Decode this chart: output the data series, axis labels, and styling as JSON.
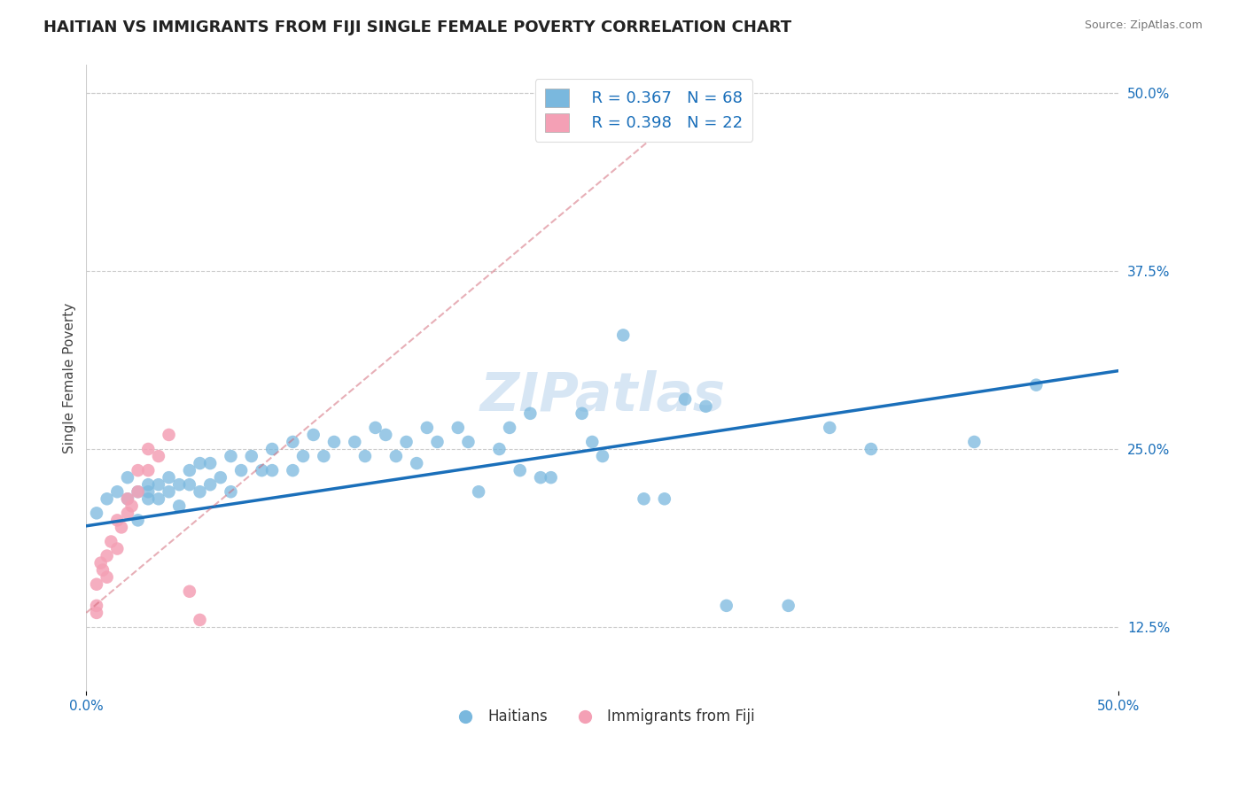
{
  "title": "HAITIAN VS IMMIGRANTS FROM FIJI SINGLE FEMALE POVERTY CORRELATION CHART",
  "source_text": "Source: ZipAtlas.com",
  "ylabel": "Single Female Poverty",
  "xlim": [
    0,
    0.5
  ],
  "ylim": [
    0.08,
    0.52
  ],
  "yticks_right": [
    0.125,
    0.25,
    0.375,
    0.5
  ],
  "yticklabels_right": [
    "12.5%",
    "25.0%",
    "37.5%",
    "50.0%"
  ],
  "watermark": "ZIPatlas",
  "legend_r1": "R = 0.367",
  "legend_n1": "N = 68",
  "legend_r2": "R = 0.398",
  "legend_n2": "N = 22",
  "blue_color": "#7ab8de",
  "pink_color": "#f4a0b5",
  "trend_blue": "#1a6fba",
  "trend_pink": "#d06070",
  "title_fontsize": 13,
  "label_fontsize": 11,
  "tick_fontsize": 11,
  "tick_color": "#1a6fba",
  "haitians_x": [
    0.005,
    0.01,
    0.015,
    0.02,
    0.02,
    0.025,
    0.025,
    0.03,
    0.03,
    0.03,
    0.035,
    0.035,
    0.04,
    0.04,
    0.045,
    0.045,
    0.05,
    0.05,
    0.055,
    0.055,
    0.06,
    0.06,
    0.065,
    0.07,
    0.07,
    0.075,
    0.08,
    0.085,
    0.09,
    0.09,
    0.1,
    0.1,
    0.105,
    0.11,
    0.115,
    0.12,
    0.13,
    0.135,
    0.14,
    0.145,
    0.15,
    0.155,
    0.16,
    0.165,
    0.17,
    0.18,
    0.185,
    0.19,
    0.2,
    0.205,
    0.21,
    0.215,
    0.22,
    0.225,
    0.24,
    0.245,
    0.25,
    0.26,
    0.27,
    0.28,
    0.29,
    0.3,
    0.31,
    0.34,
    0.36,
    0.38,
    0.43,
    0.46
  ],
  "haitians_y": [
    0.205,
    0.215,
    0.22,
    0.215,
    0.23,
    0.2,
    0.22,
    0.215,
    0.22,
    0.225,
    0.215,
    0.225,
    0.22,
    0.23,
    0.21,
    0.225,
    0.225,
    0.235,
    0.22,
    0.24,
    0.225,
    0.24,
    0.23,
    0.22,
    0.245,
    0.235,
    0.245,
    0.235,
    0.235,
    0.25,
    0.235,
    0.255,
    0.245,
    0.26,
    0.245,
    0.255,
    0.255,
    0.245,
    0.265,
    0.26,
    0.245,
    0.255,
    0.24,
    0.265,
    0.255,
    0.265,
    0.255,
    0.22,
    0.25,
    0.265,
    0.235,
    0.275,
    0.23,
    0.23,
    0.275,
    0.255,
    0.245,
    0.33,
    0.215,
    0.215,
    0.285,
    0.28,
    0.14,
    0.14,
    0.265,
    0.25,
    0.255,
    0.295
  ],
  "fiji_x": [
    0.005,
    0.005,
    0.005,
    0.007,
    0.008,
    0.01,
    0.01,
    0.012,
    0.015,
    0.015,
    0.017,
    0.02,
    0.02,
    0.022,
    0.025,
    0.025,
    0.03,
    0.03,
    0.035,
    0.04,
    0.05,
    0.055
  ],
  "fiji_y": [
    0.135,
    0.14,
    0.155,
    0.17,
    0.165,
    0.175,
    0.16,
    0.185,
    0.18,
    0.2,
    0.195,
    0.205,
    0.215,
    0.21,
    0.22,
    0.235,
    0.235,
    0.25,
    0.245,
    0.26,
    0.15,
    0.13
  ],
  "blue_trendline_x": [
    0.0,
    0.5
  ],
  "blue_trendline_y": [
    0.196,
    0.305
  ],
  "pink_trendline_x": [
    0.0,
    0.3
  ],
  "pink_trendline_y": [
    0.135,
    0.5
  ]
}
